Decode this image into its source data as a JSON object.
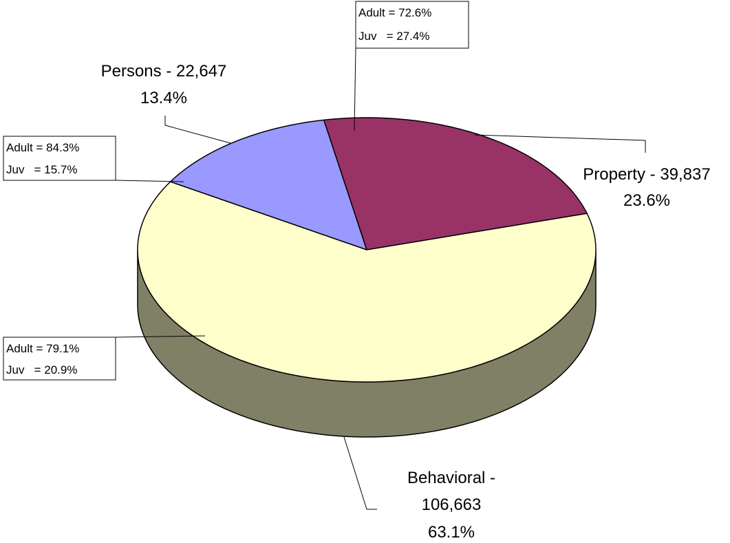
{
  "chart_data": {
    "type": "pie",
    "categories": [
      "Property -",
      "Persons -",
      "Behavioral -"
    ],
    "values": [
      39837,
      22647,
      106663
    ],
    "value_labels": [
      "39,837",
      "22,647",
      "106,663"
    ],
    "percents": [
      23.6,
      13.4,
      63.1
    ],
    "percent_labels": [
      "23.6%",
      "13.4%",
      "63.1%"
    ],
    "colors": [
      "#993366",
      "#9999ff",
      "#ffffcc"
    ],
    "side_color": "#808066",
    "annotations": [
      [
        "Adult = 72.6%",
        "Juv   = 27.4%"
      ],
      [
        "Adult = 84.3%",
        "Juv   = 15.7%"
      ],
      [
        "Adult = 79.1%",
        "Juv   = 20.9%"
      ]
    ]
  }
}
